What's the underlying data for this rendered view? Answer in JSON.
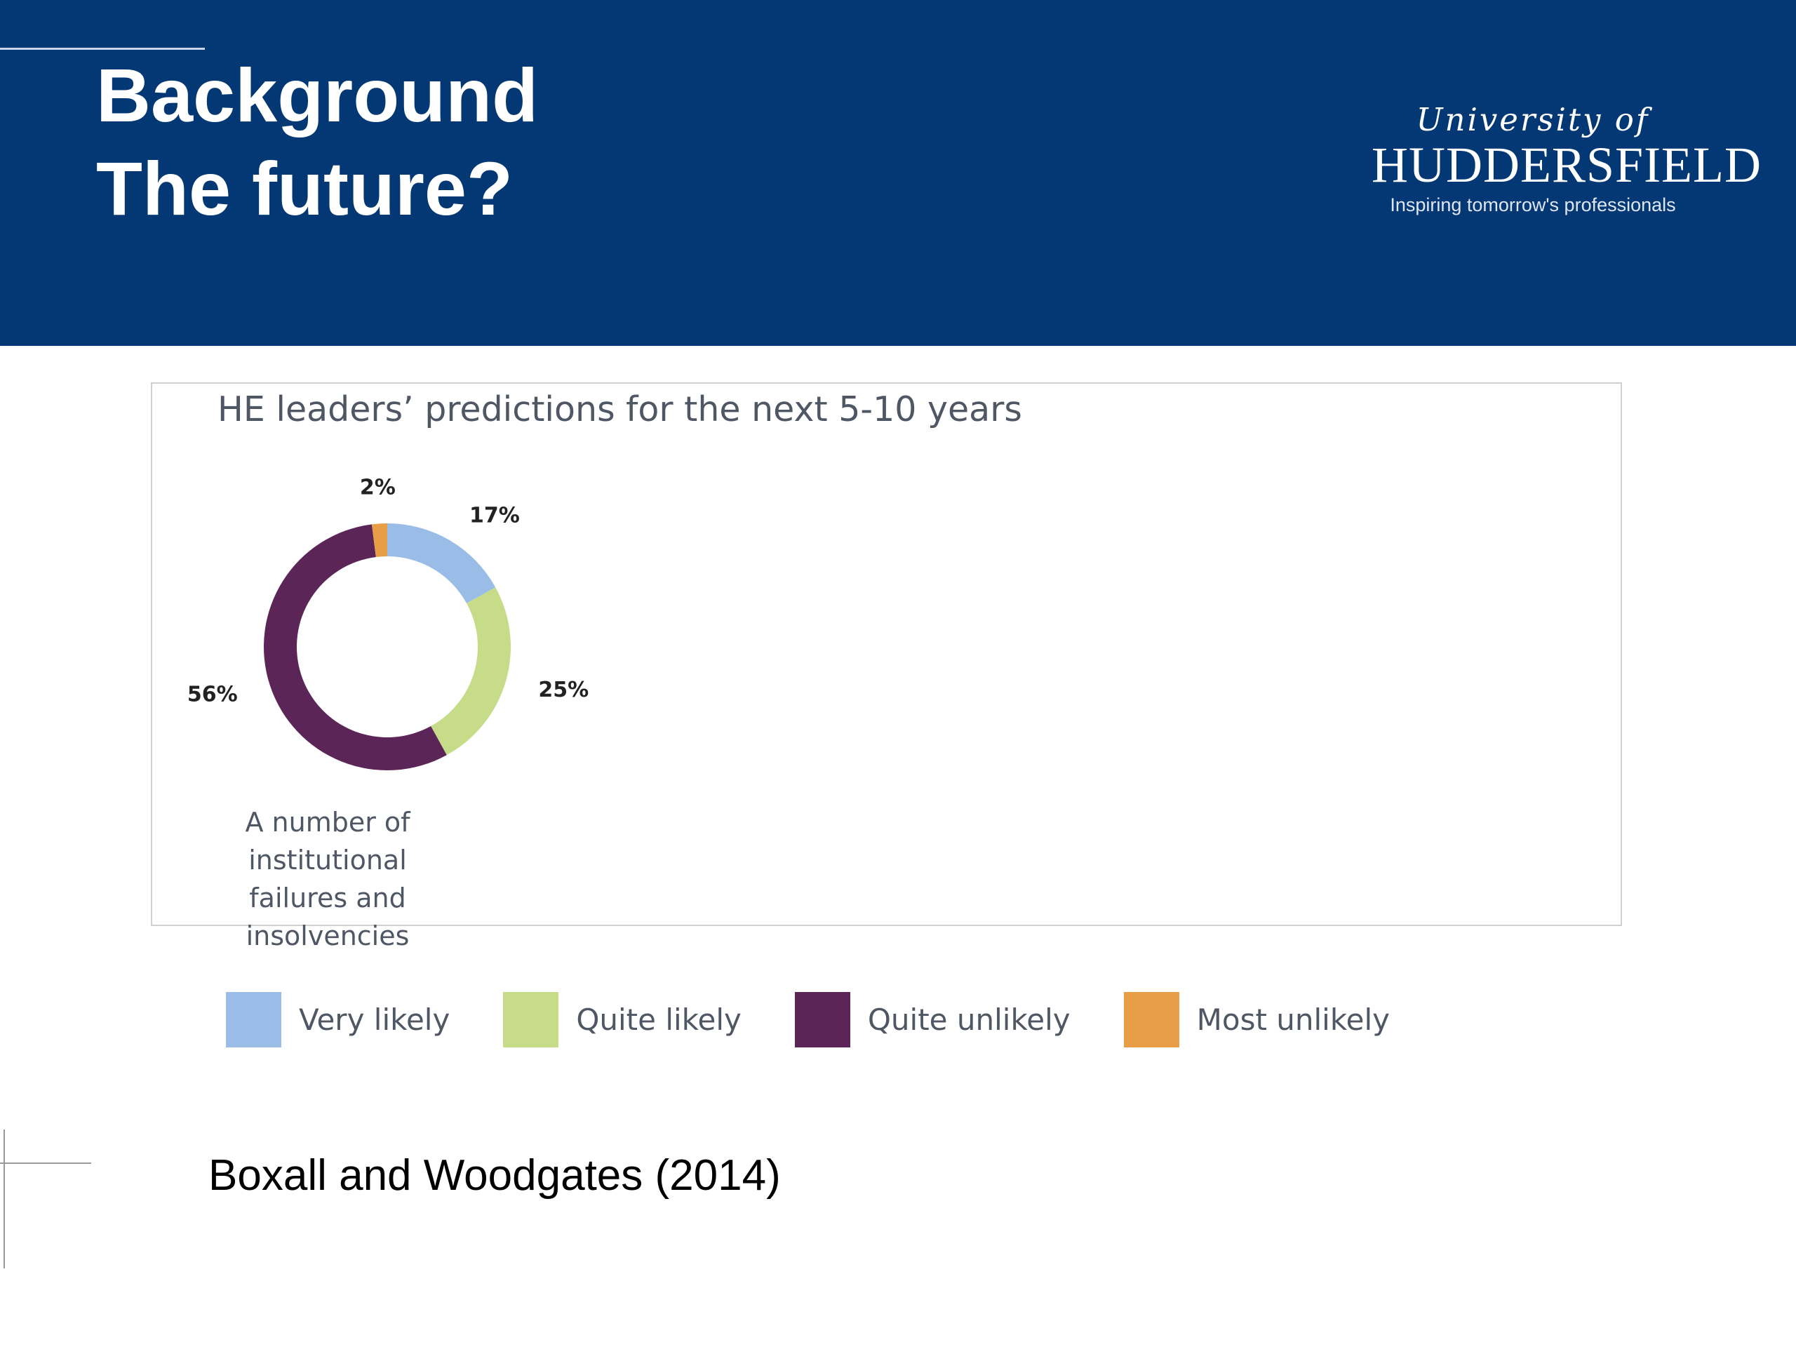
{
  "slide": {
    "title_line_1": "Background",
    "title_line_2": "The future?",
    "header_color": "#033874"
  },
  "logo": {
    "university_of": "University of",
    "name": "HUDDERSFIELD",
    "tagline": "Inspiring tomorrow's professionals"
  },
  "chart_data": {
    "type": "pie",
    "subtype": "donut",
    "title": "HE leaders’ predictions for the next 5-10 years",
    "caption": "A number of institutional failures and insolvencies",
    "caption_lines": [
      "A number of institutional",
      "failures and insolvencies"
    ],
    "categories": [
      "Very likely",
      "Quite likely",
      "Quite unlikely",
      "Most unlikely"
    ],
    "values": [
      17,
      25,
      56,
      2
    ],
    "value_labels": [
      "17%",
      "25%",
      "56%",
      "2%"
    ],
    "colors": [
      "#99bde6",
      "#c7dc88",
      "#5c2558",
      "#e79e47"
    ],
    "legend_position": "bottom"
  },
  "citation": "Boxall and Woodgates (2014)"
}
